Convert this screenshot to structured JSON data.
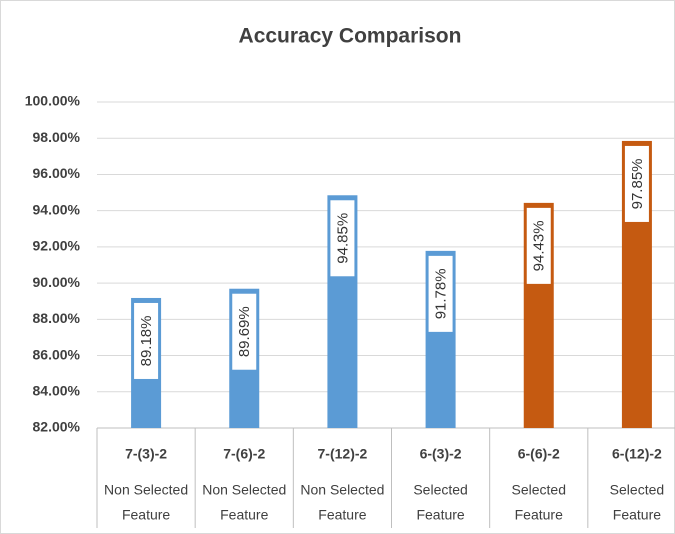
{
  "chart_data": {
    "type": "bar",
    "title": "Accuracy Comparison",
    "categories": [
      "7-(3)-2",
      "7-(6)-2",
      "7-(12)-2",
      "6-(3)-2",
      "6-(6)-2",
      "6-(12)-2"
    ],
    "subcategories": [
      [
        "Non Selected",
        "Feature"
      ],
      [
        "Non Selected",
        "Feature"
      ],
      [
        "Non Selected",
        "Feature"
      ],
      [
        "Selected",
        "Feature"
      ],
      [
        "Selected",
        "Feature"
      ],
      [
        "Selected",
        "Feature"
      ]
    ],
    "values": [
      89.18,
      89.69,
      94.85,
      91.78,
      94.43,
      97.85
    ],
    "value_labels": [
      "89.18%",
      "89.69%",
      "94.85%",
      "91.78%",
      "94.43%",
      "97.85%"
    ],
    "colors": [
      "#5b9bd5",
      "#5b9bd5",
      "#5b9bd5",
      "#5b9bd5",
      "#c55a11",
      "#c55a11"
    ],
    "ylim": [
      82,
      100
    ],
    "yticks": [
      {
        "value": 82,
        "label": "82.00%"
      },
      {
        "value": 84,
        "label": "84.00%"
      },
      {
        "value": 86,
        "label": "86.00%"
      },
      {
        "value": 88,
        "label": "88.00%"
      },
      {
        "value": 90,
        "label": "90.00%"
      },
      {
        "value": 92,
        "label": "92.00%"
      },
      {
        "value": 94,
        "label": "94.00%"
      },
      {
        "value": 96,
        "label": "96.00%"
      },
      {
        "value": 98,
        "label": "98.00%"
      },
      {
        "value": 100,
        "label": "100.00%"
      }
    ],
    "grid": true
  }
}
